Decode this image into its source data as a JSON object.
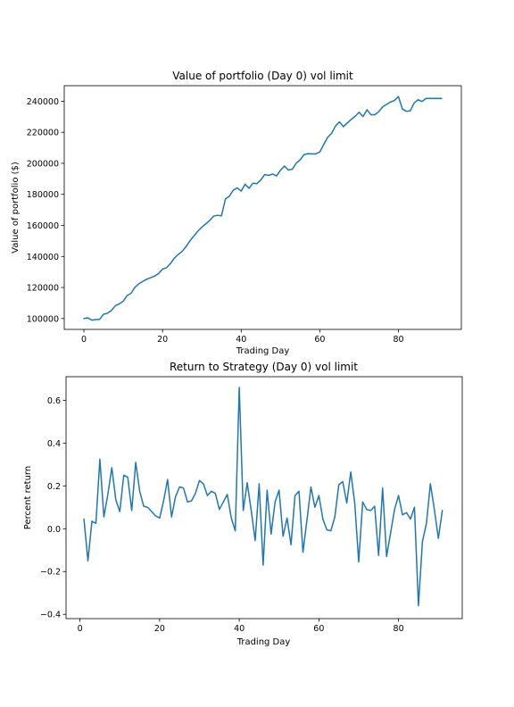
{
  "chart_data": [
    {
      "type": "line",
      "title": "Value of portfolio (Day 0) vol limit",
      "xlabel": "Trading Day",
      "ylabel": "Value of portfolio ($)",
      "xlim": [
        -5,
        96
      ],
      "ylim": [
        93000,
        250000
      ],
      "xticks": [
        0,
        20,
        40,
        60,
        80
      ],
      "yticks": [
        100000,
        120000,
        140000,
        160000,
        180000,
        200000,
        220000,
        240000
      ],
      "ytick_labels": [
        "100000",
        "120000",
        "140000",
        "160000",
        "180000",
        "200000",
        "220000",
        "240000"
      ],
      "grid": false,
      "color": "#1f77b4",
      "x": [
        0,
        1,
        2,
        3,
        4,
        5,
        6,
        7,
        8,
        9,
        10,
        11,
        12,
        13,
        14,
        15,
        16,
        17,
        18,
        19,
        20,
        21,
        22,
        23,
        24,
        25,
        26,
        27,
        28,
        29,
        30,
        31,
        32,
        33,
        34,
        35,
        36,
        37,
        38,
        39,
        40,
        41,
        42,
        43,
        44,
        45,
        46,
        47,
        48,
        49,
        50,
        51,
        52,
        53,
        54,
        55,
        56,
        57,
        58,
        59,
        60,
        61,
        62,
        63,
        64,
        65,
        66,
        67,
        68,
        69,
        70,
        71,
        72,
        73,
        74,
        75,
        76,
        77,
        78,
        79,
        80,
        81,
        82,
        83,
        84,
        85,
        86,
        87,
        88,
        89,
        90,
        91
      ],
      "y": [
        100000,
        100500,
        99000,
        99300,
        99500,
        102800,
        103400,
        105200,
        108200,
        109400,
        111200,
        114800,
        116300,
        120200,
        122400,
        124000,
        125400,
        126300,
        127400,
        129000,
        131900,
        132700,
        135400,
        138900,
        141300,
        143300,
        146400,
        150200,
        153200,
        156400,
        158900,
        161000,
        163200,
        166000,
        166500,
        166200,
        177100,
        178800,
        182700,
        184200,
        182100,
        186500,
        183900,
        187200,
        186900,
        189300,
        192800,
        192200,
        193100,
        191900,
        195600,
        198200,
        195700,
        196200,
        200100,
        202300,
        205600,
        206200,
        206100,
        206100,
        207300,
        212100,
        216700,
        219300,
        224100,
        226700,
        223600,
        226000,
        228300,
        230300,
        232900,
        230100,
        234500,
        231300,
        231300,
        233300,
        236400,
        238000,
        239500,
        240500,
        243000,
        235000,
        233500,
        233800,
        238900,
        241000,
        239800,
        241800,
        241800,
        241800,
        241800,
        241800
      ]
    },
    {
      "type": "line",
      "title": "Return to Strategy (Day 0) vol limit",
      "xlabel": "Trading Day",
      "ylabel": "Percent return",
      "xlim": [
        -3.5,
        96
      ],
      "ylim": [
        -0.42,
        0.71
      ],
      "xticks": [
        0,
        20,
        40,
        60,
        80
      ],
      "yticks": [
        -0.4,
        -0.2,
        0.0,
        0.2,
        0.4,
        0.6
      ],
      "ytick_labels": [
        "−0.4",
        "−0.2",
        "0.0",
        "0.2",
        "0.4",
        "0.6"
      ],
      "grid": false,
      "color": "#1f77b4",
      "x": [
        1,
        2,
        3,
        4,
        5,
        6,
        7,
        8,
        9,
        10,
        11,
        12,
        13,
        14,
        15,
        16,
        17,
        18,
        19,
        20,
        21,
        22,
        23,
        24,
        25,
        26,
        27,
        28,
        29,
        30,
        31,
        32,
        33,
        34,
        35,
        36,
        37,
        38,
        39,
        40,
        41,
        42,
        43,
        44,
        45,
        46,
        47,
        48,
        49,
        50,
        51,
        52,
        53,
        54,
        55,
        56,
        57,
        58,
        59,
        60,
        61,
        62,
        63,
        64,
        65,
        66,
        67,
        68,
        69,
        70,
        71,
        72,
        73,
        74,
        75,
        76,
        77,
        78,
        79,
        80,
        81,
        82,
        83,
        84,
        85,
        86,
        87,
        88,
        89,
        90,
        91
      ],
      "y": [
        0.045,
        -0.15,
        0.035,
        0.025,
        0.325,
        0.055,
        0.16,
        0.285,
        0.135,
        0.08,
        0.25,
        0.24,
        0.085,
        0.31,
        0.175,
        0.105,
        0.1,
        0.08,
        0.06,
        0.05,
        0.13,
        0.23,
        0.055,
        0.15,
        0.195,
        0.19,
        0.125,
        0.13,
        0.165,
        0.225,
        0.21,
        0.155,
        0.175,
        0.165,
        0.09,
        0.125,
        0.16,
        0.05,
        -0.01,
        0.66,
        0.085,
        0.215,
        0.085,
        -0.055,
        0.21,
        -0.17,
        0.18,
        -0.025,
        0.125,
        0.18,
        -0.035,
        0.05,
        -0.075,
        0.155,
        0.175,
        -0.11,
        0.04,
        0.195,
        0.1,
        0.155,
        0.045,
        -0.005,
        -0.01,
        0.055,
        0.205,
        0.22,
        0.12,
        0.265,
        0.12,
        -0.155,
        0.125,
        0.09,
        0.085,
        0.105,
        -0.125,
        0.19,
        -0.13,
        -0.02,
        0.09,
        0.155,
        0.065,
        0.075,
        0.045,
        0.1,
        -0.36,
        -0.06,
        0.025,
        0.21,
        0.09,
        -0.045,
        0.085
      ]
    }
  ]
}
